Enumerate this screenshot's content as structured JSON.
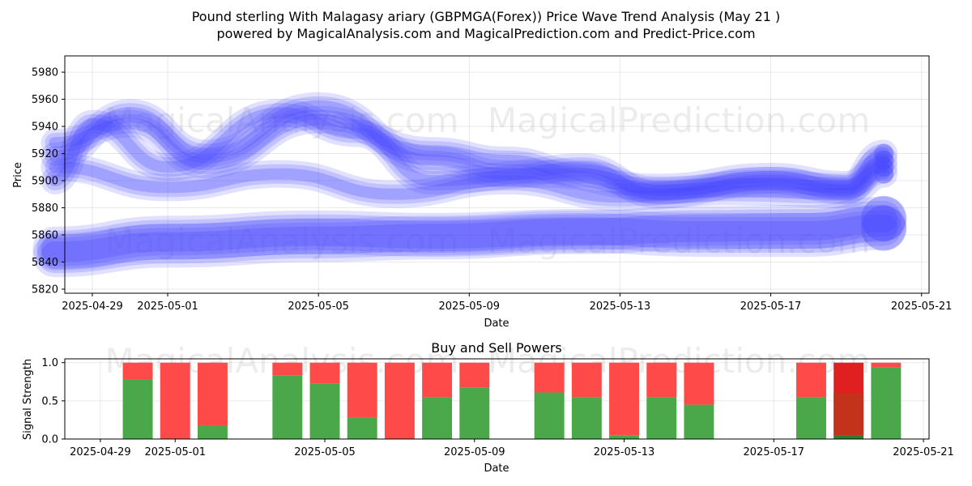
{
  "figure": {
    "title_line1": "Pound sterling With Malagasy ariary (GBPMGA(Forex)) Price Wave Trend Analysis (May 21 )",
    "title_line2": "powered by MagicalAnalysis.com and MagicalPrediction.com and Predict-Price.com",
    "watermarks": [
      "MagicalAnalysis.com",
      "MagicalPrediction.com"
    ]
  },
  "chart_data": [
    {
      "type": "line",
      "title": "",
      "xlabel": "Date",
      "ylabel": "Price",
      "x_tick_labels": [
        "2025-04-29",
        "2025-05-01",
        "2025-05-05",
        "2025-05-09",
        "2025-05-13",
        "2025-05-17",
        "2025-05-21"
      ],
      "y_tick_labels": [
        "5820",
        "5840",
        "5860",
        "5880",
        "5900",
        "5920",
        "5940",
        "5960",
        "5980"
      ],
      "ylim": [
        5817,
        5992
      ],
      "xlim": [
        "2025-04-28",
        "2025-05-21"
      ],
      "grid": true,
      "color": "#4444ff",
      "series": [
        {
          "x": [
            "2025-04-28",
            "2025-04-30",
            "2025-05-02",
            "2025-05-05",
            "2025-05-08",
            "2025-05-10",
            "2025-05-12",
            "2025-05-14",
            "2025-05-17",
            "2025-05-19",
            "2025-05-20"
          ],
          "y": [
            5928,
            5942,
            5912,
            5945,
            5922,
            5915,
            5905,
            5893,
            5898,
            5895,
            5920
          ]
        },
        {
          "x": [
            "2025-04-28",
            "2025-04-30",
            "2025-05-02",
            "2025-05-05",
            "2025-05-08",
            "2025-05-10",
            "2025-05-12",
            "2025-05-14",
            "2025-05-17",
            "2025-05-19",
            "2025-05-20"
          ],
          "y": [
            5918,
            5950,
            5920,
            5955,
            5915,
            5905,
            5910,
            5890,
            5900,
            5893,
            5915
          ]
        },
        {
          "x": [
            "2025-04-28",
            "2025-04-29",
            "2025-05-01",
            "2025-05-04",
            "2025-05-06",
            "2025-05-08",
            "2025-05-11",
            "2025-05-14",
            "2025-05-17",
            "2025-05-19",
            "2025-05-20"
          ],
          "y": [
            5900,
            5942,
            5910,
            5950,
            5935,
            5900,
            5905,
            5895,
            5903,
            5897,
            5910
          ]
        },
        {
          "x": [
            "2025-04-28",
            "2025-05-01",
            "2025-05-04",
            "2025-05-07",
            "2025-05-10",
            "2025-05-13",
            "2025-05-16",
            "2025-05-19",
            "2025-05-20"
          ],
          "y": [
            5910,
            5895,
            5905,
            5890,
            5900,
            5888,
            5892,
            5890,
            5905
          ]
        },
        {
          "x": [
            "2025-04-28",
            "2025-05-01",
            "2025-05-05",
            "2025-05-08",
            "2025-05-12",
            "2025-05-15",
            "2025-05-18",
            "2025-05-20"
          ],
          "y": [
            5850,
            5858,
            5862,
            5860,
            5863,
            5860,
            5860,
            5865
          ]
        },
        {
          "x": [
            "2025-04-28",
            "2025-05-01",
            "2025-05-05",
            "2025-05-08",
            "2025-05-12",
            "2025-05-15",
            "2025-05-18",
            "2025-05-20"
          ],
          "y": [
            5845,
            5852,
            5856,
            5858,
            5862,
            5865,
            5866,
            5872
          ]
        }
      ]
    },
    {
      "type": "bar",
      "title": "Buy and Sell Powers",
      "xlabel": "Date",
      "ylabel": "Signal Strength",
      "x_tick_labels": [
        "2025-04-29",
        "2025-05-01",
        "2025-05-05",
        "2025-05-09",
        "2025-05-13",
        "2025-05-17",
        "2025-05-21"
      ],
      "y_tick_labels": [
        "0.0",
        "0.5",
        "1.0"
      ],
      "ylim": [
        0,
        1.05
      ],
      "xlim": [
        "2025-04-28",
        "2025-05-21"
      ],
      "grid": true,
      "colors": {
        "buy": "#4aa84a",
        "sell": "#ff4a4a",
        "buy_dark": "#2e7d2e",
        "sell_dark": "#e02020"
      },
      "categories": [
        "2025-04-30",
        "2025-05-01",
        "2025-05-02",
        "2025-05-04",
        "2025-05-05",
        "2025-05-06",
        "2025-05-07",
        "2025-05-08",
        "2025-05-09",
        "2025-05-11",
        "2025-05-12",
        "2025-05-13",
        "2025-05-14",
        "2025-05-15",
        "2025-05-18",
        "2025-05-19",
        "2025-05-20"
      ],
      "buy": [
        0.78,
        0.0,
        0.17,
        0.83,
        0.73,
        0.28,
        0.0,
        0.55,
        0.67,
        0.61,
        0.55,
        0.05,
        0.55,
        0.45,
        0.55,
        0.05,
        0.94
      ],
      "sell": [
        0.22,
        1.0,
        0.83,
        0.17,
        0.27,
        0.72,
        1.0,
        0.45,
        0.33,
        0.39,
        0.45,
        0.95,
        0.45,
        0.55,
        0.45,
        0.95,
        0.06
      ],
      "highlight": [
        false,
        false,
        false,
        false,
        false,
        false,
        false,
        false,
        false,
        false,
        false,
        false,
        false,
        false,
        false,
        true,
        false
      ]
    }
  ]
}
